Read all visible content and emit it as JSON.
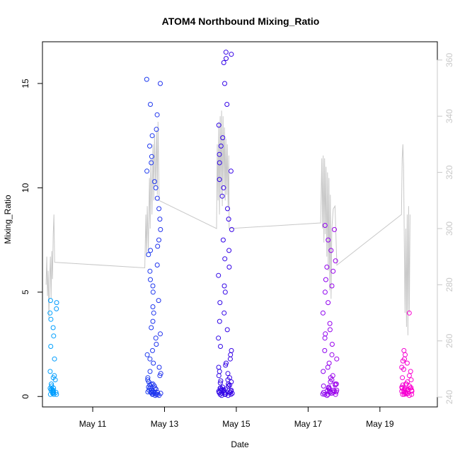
{
  "chart_data": {
    "type": "scatter",
    "title": "ATOM4 Northbound Mixing_Ratio",
    "xlabel": "Date",
    "ylabel": "Mixing_Ratio",
    "xlim": [
      9.6,
      20.6
    ],
    "ylim": [
      -0.5,
      17.0
    ],
    "ylim_right": [
      236.5,
      366.5
    ],
    "x_ticks": [
      {
        "value": 11,
        "label": "May 11"
      },
      {
        "value": 13,
        "label": "May 13"
      },
      {
        "value": 15,
        "label": "May 15"
      },
      {
        "value": 17,
        "label": "May 17"
      },
      {
        "value": 19,
        "label": "May 19"
      }
    ],
    "y_ticks": [
      0,
      5,
      10,
      15
    ],
    "y_ticks_right": [
      240,
      260,
      280,
      300,
      320,
      340,
      360
    ],
    "marker": "open-circle",
    "color_gradient": [
      "#00a2ff",
      "#1b40f0",
      "#3500e6",
      "#8a00f0",
      "#ff00d0"
    ],
    "secondary_line_color": "#c8c8c8",
    "grid": false,
    "legend": "none",
    "clusters": [
      {
        "x": [
          9.8,
          10.0
        ],
        "points": [
          0.3,
          0.2,
          0.1,
          0.35,
          0.15,
          0.25,
          0.4,
          0.2,
          0.1,
          0.3,
          0.5,
          0.8,
          1.0,
          1.2,
          0.9,
          0.6,
          1.8,
          2.4,
          2.9,
          3.3,
          3.7,
          4.0,
          4.2,
          4.5,
          4.6,
          0.2,
          0.1,
          0.3,
          0.15,
          0.4
        ]
      },
      {
        "x": [
          12.5,
          12.9
        ],
        "points": [
          0.1,
          0.2,
          0.3,
          0.15,
          0.25,
          0.4,
          0.5,
          0.6,
          0.7,
          0.1,
          0.2,
          0.3,
          0.8,
          1.0,
          1.2,
          1.4,
          1.6,
          1.8,
          0.05,
          0.1,
          0.2,
          0.35,
          0.45,
          0.55,
          0.12,
          0.22,
          2.0,
          2.2,
          2.5,
          2.8,
          3.0,
          3.3,
          3.6,
          4.0,
          4.3,
          4.6,
          5.0,
          5.3,
          5.6,
          6.0,
          6.3,
          6.8,
          7.0,
          7.2,
          7.5,
          8.0,
          8.5,
          9.0,
          9.5,
          10.0,
          10.3,
          10.8,
          11.2,
          11.5,
          12.0,
          12.5,
          12.8,
          13.5,
          14.0,
          15.0,
          15.2,
          0.3,
          0.4,
          0.6,
          0.9,
          1.1,
          0.2,
          0.05,
          0.15,
          0.25
        ]
      },
      {
        "x": [
          14.5,
          14.9
        ],
        "points": [
          0.1,
          0.2,
          0.3,
          0.15,
          0.25,
          0.4,
          0.5,
          0.6,
          0.8,
          0.1,
          0.05,
          0.2,
          0.3,
          1.0,
          1.2,
          1.4,
          1.6,
          1.8,
          2.0,
          2.4,
          0.1,
          0.2,
          0.3,
          0.12,
          0.18,
          0.28,
          0.35,
          0.45,
          0.55,
          0.65,
          0.75,
          2.8,
          3.2,
          3.6,
          4.0,
          4.5,
          5.0,
          5.3,
          5.8,
          6.2,
          6.6,
          7.0,
          7.5,
          8.0,
          8.5,
          9.0,
          9.6,
          10.0,
          10.4,
          10.8,
          11.2,
          11.6,
          12.0,
          12.4,
          13.0,
          14.0,
          15.0,
          16.0,
          16.2,
          16.4,
          16.5,
          0.2,
          0.4,
          0.7,
          1.1,
          1.5,
          2.2,
          0.05,
          0.1,
          0.15,
          0.25,
          0.3,
          0.35,
          0.5,
          0.9
        ]
      },
      {
        "x": [
          17.4,
          17.8
        ],
        "points": [
          0.1,
          0.2,
          0.3,
          0.15,
          0.25,
          0.4,
          0.5,
          0.6,
          0.7,
          0.8,
          0.1,
          0.2,
          0.3,
          0.35,
          0.45,
          0.55,
          1.0,
          1.2,
          1.4,
          1.6,
          1.8,
          2.0,
          2.2,
          2.5,
          2.8,
          3.0,
          3.2,
          0.05,
          0.12,
          0.22,
          3.5,
          4.0,
          4.5,
          5.0,
          5.3,
          5.6,
          6.0,
          6.2,
          6.5,
          7.0,
          7.5,
          8.0,
          8.2,
          0.3,
          0.4,
          0.6,
          0.9,
          0.2,
          0.1,
          0.25
        ]
      },
      {
        "x": [
          19.6,
          19.9
        ],
        "points": [
          0.1,
          0.2,
          0.3,
          0.15,
          0.25,
          0.4,
          0.5,
          0.6,
          0.7,
          0.8,
          0.1,
          0.2,
          0.3,
          0.35,
          0.45,
          0.55,
          1.0,
          1.2,
          1.4,
          1.6,
          1.8,
          2.0,
          2.2,
          0.05,
          0.12,
          0.22,
          0.32,
          0.42,
          0.3,
          0.2,
          0.1,
          0.4,
          0.6,
          0.9,
          1.3,
          1.7,
          4.0,
          0.15,
          0.25,
          0.35
        ]
      }
    ],
    "secondary_line": [
      {
        "x": 9.7,
        "y": 280
      },
      {
        "x": 9.72,
        "y": 290
      },
      {
        "x": 9.74,
        "y": 276
      },
      {
        "x": 9.76,
        "y": 285
      },
      {
        "x": 9.78,
        "y": 268
      },
      {
        "x": 9.8,
        "y": 282
      },
      {
        "x": 9.82,
        "y": 290
      },
      {
        "x": 9.84,
        "y": 275
      },
      {
        "x": 9.86,
        "y": 292
      },
      {
        "x": 9.88,
        "y": 282
      },
      {
        "x": 9.9,
        "y": 298
      },
      {
        "x": 9.92,
        "y": 305
      },
      {
        "x": 9.94,
        "y": 288
      },
      {
        "x": 12.45,
        "y": 286
      },
      {
        "x": 12.48,
        "y": 305
      },
      {
        "x": 12.5,
        "y": 290
      },
      {
        "x": 12.52,
        "y": 308
      },
      {
        "x": 12.55,
        "y": 292
      },
      {
        "x": 12.58,
        "y": 318
      },
      {
        "x": 12.6,
        "y": 300
      },
      {
        "x": 12.62,
        "y": 325
      },
      {
        "x": 12.65,
        "y": 305
      },
      {
        "x": 12.68,
        "y": 330
      },
      {
        "x": 12.7,
        "y": 310
      },
      {
        "x": 12.72,
        "y": 333
      },
      {
        "x": 12.75,
        "y": 315
      },
      {
        "x": 12.78,
        "y": 335
      },
      {
        "x": 12.8,
        "y": 312
      },
      {
        "x": 12.82,
        "y": 338
      },
      {
        "x": 12.85,
        "y": 310
      },
      {
        "x": 14.45,
        "y": 300
      },
      {
        "x": 14.47,
        "y": 330
      },
      {
        "x": 14.49,
        "y": 310
      },
      {
        "x": 14.51,
        "y": 338
      },
      {
        "x": 14.53,
        "y": 305
      },
      {
        "x": 14.55,
        "y": 340
      },
      {
        "x": 14.57,
        "y": 312
      },
      {
        "x": 14.59,
        "y": 342
      },
      {
        "x": 14.61,
        "y": 308
      },
      {
        "x": 14.63,
        "y": 340
      },
      {
        "x": 14.65,
        "y": 315
      },
      {
        "x": 14.67,
        "y": 336
      },
      {
        "x": 14.69,
        "y": 310
      },
      {
        "x": 14.71,
        "y": 332
      },
      {
        "x": 14.73,
        "y": 312
      },
      {
        "x": 14.75,
        "y": 330
      },
      {
        "x": 14.77,
        "y": 308
      },
      {
        "x": 14.79,
        "y": 326
      },
      {
        "x": 14.8,
        "y": 300
      },
      {
        "x": 17.35,
        "y": 302
      },
      {
        "x": 17.38,
        "y": 325
      },
      {
        "x": 17.4,
        "y": 300
      },
      {
        "x": 17.42,
        "y": 326
      },
      {
        "x": 17.44,
        "y": 295
      },
      {
        "x": 17.46,
        "y": 325
      },
      {
        "x": 17.48,
        "y": 298
      },
      {
        "x": 17.5,
        "y": 322
      },
      {
        "x": 17.52,
        "y": 290
      },
      {
        "x": 17.54,
        "y": 320
      },
      {
        "x": 17.56,
        "y": 285
      },
      {
        "x": 17.58,
        "y": 318
      },
      {
        "x": 17.6,
        "y": 278
      },
      {
        "x": 17.62,
        "y": 312
      },
      {
        "x": 17.64,
        "y": 275
      },
      {
        "x": 17.66,
        "y": 300
      },
      {
        "x": 17.7,
        "y": 307
      },
      {
        "x": 17.75,
        "y": 308
      },
      {
        "x": 17.8,
        "y": 287
      },
      {
        "x": 19.6,
        "y": 305
      },
      {
        "x": 19.62,
        "y": 325
      },
      {
        "x": 19.64,
        "y": 330
      },
      {
        "x": 19.66,
        "y": 322
      },
      {
        "x": 19.68,
        "y": 295
      },
      {
        "x": 19.7,
        "y": 270
      },
      {
        "x": 19.72,
        "y": 300
      },
      {
        "x": 19.74,
        "y": 265
      },
      {
        "x": 19.76,
        "y": 305
      },
      {
        "x": 19.78,
        "y": 262
      },
      {
        "x": 19.8,
        "y": 308
      },
      {
        "x": 19.82,
        "y": 270
      },
      {
        "x": 19.84,
        "y": 305
      }
    ]
  }
}
